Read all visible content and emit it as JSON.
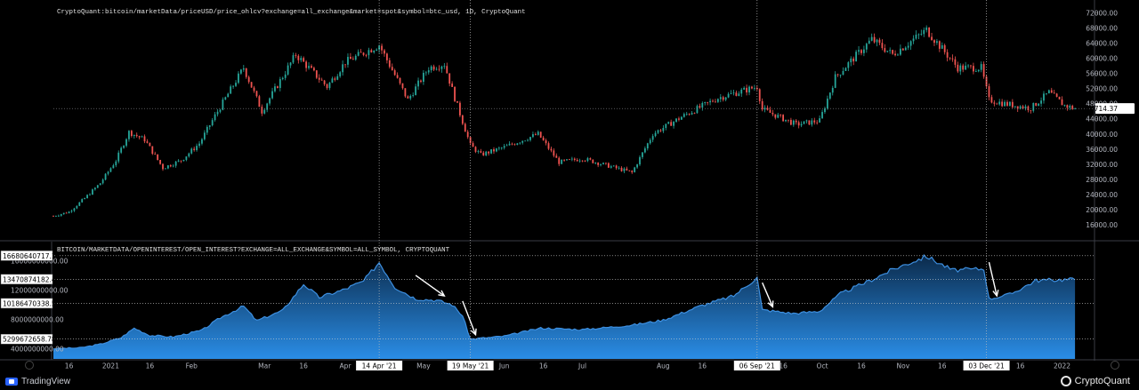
{
  "chart_data": [
    {
      "type": "candlestick",
      "title": "CryptoQuant:bitcoin/marketData/priceUSD/price_ohlcv?exchange=all_exchange&market=spot&symbol=btc_usd, 1D, CryptoQuant",
      "ylim": [
        12000,
        74000
      ],
      "ticks": [
        "16000.00",
        "20000.00",
        "24000.00",
        "28000.00",
        "32000.00",
        "36000.00",
        "40000.00",
        "44000.00",
        "48000.00",
        "52000.00",
        "56000.00",
        "60000.00",
        "64000.00",
        "68000.00",
        "72000.00"
      ],
      "last_price_label": "46714.37",
      "last_price": 46714.37,
      "up_color": "#26a69a",
      "down_color": "#ef5350",
      "price_path": [
        {
          "x": "2020-12-10",
          "y": 18300
        },
        {
          "x": "2020-12-16",
          "y": 19400
        },
        {
          "x": "2020-12-22",
          "y": 23000
        },
        {
          "x": "2020-12-28",
          "y": 27000
        },
        {
          "x": "2021-01-03",
          "y": 33000
        },
        {
          "x": "2021-01-08",
          "y": 40500
        },
        {
          "x": "2021-01-14",
          "y": 38500
        },
        {
          "x": "2021-01-21",
          "y": 31000
        },
        {
          "x": "2021-01-28",
          "y": 33000
        },
        {
          "x": "2021-02-04",
          "y": 37500
        },
        {
          "x": "2021-02-10",
          "y": 44800
        },
        {
          "x": "2021-02-21",
          "y": 57500
        },
        {
          "x": "2021-02-28",
          "y": 46000
        },
        {
          "x": "2021-03-13",
          "y": 61000
        },
        {
          "x": "2021-03-25",
          "y": 52500
        },
        {
          "x": "2021-04-01",
          "y": 59000
        },
        {
          "x": "2021-04-14",
          "y": 63500
        },
        {
          "x": "2021-04-25",
          "y": 49000
        },
        {
          "x": "2021-05-03",
          "y": 57500
        },
        {
          "x": "2021-05-09",
          "y": 58500
        },
        {
          "x": "2021-05-13",
          "y": 49500
        },
        {
          "x": "2021-05-19",
          "y": 37000
        },
        {
          "x": "2021-05-23",
          "y": 34500
        },
        {
          "x": "2021-06-01",
          "y": 36500
        },
        {
          "x": "2021-06-14",
          "y": 40000
        },
        {
          "x": "2021-06-22",
          "y": 32500
        },
        {
          "x": "2021-07-01",
          "y": 33500
        },
        {
          "x": "2021-07-20",
          "y": 29800
        },
        {
          "x": "2021-07-28",
          "y": 40000
        },
        {
          "x": "2021-08-08",
          "y": 44500
        },
        {
          "x": "2021-08-22",
          "y": 49500
        },
        {
          "x": "2021-09-06",
          "y": 52500
        },
        {
          "x": "2021-09-08",
          "y": 46500
        },
        {
          "x": "2021-09-21",
          "y": 42500
        },
        {
          "x": "2021-09-30",
          "y": 43500
        },
        {
          "x": "2021-10-06",
          "y": 55000
        },
        {
          "x": "2021-10-20",
          "y": 65000
        },
        {
          "x": "2021-10-28",
          "y": 61000
        },
        {
          "x": "2021-11-10",
          "y": 67500
        },
        {
          "x": "2021-11-22",
          "y": 57500
        },
        {
          "x": "2021-12-01",
          "y": 57500
        },
        {
          "x": "2021-12-04",
          "y": 49000
        },
        {
          "x": "2021-12-10",
          "y": 48000
        },
        {
          "x": "2021-12-20",
          "y": 46800
        },
        {
          "x": "2021-12-27",
          "y": 51000
        },
        {
          "x": "2022-01-02",
          "y": 47500
        },
        {
          "x": "2022-01-06",
          "y": 46714
        }
      ]
    },
    {
      "type": "area",
      "title": "BITCOIN/MARKETDATA/OPENINTEREST/OPEN_INTEREST?EXCHANGE=ALL_EXCHANGE&SYMBOL=ALL_SYMBOL, CRYPTOQUANT",
      "ylim": [
        2600000000,
        18600000000
      ],
      "ticks": [
        "4000000000.00",
        "8000000000.00",
        "12000000000.00",
        "16000000000.00"
      ],
      "labels": [
        "16680640717.18",
        "13470874182.40",
        "10186470338.57",
        "5299672658.78"
      ],
      "line_color": "#3d8fe0",
      "oi_path": [
        {
          "x": "2020-12-10",
          "y": 4000000000
        },
        {
          "x": "2020-12-20",
          "y": 4100000000
        },
        {
          "x": "2020-12-28",
          "y": 4600000000
        },
        {
          "x": "2021-01-05",
          "y": 5500000000
        },
        {
          "x": "2021-01-10",
          "y": 6800000000
        },
        {
          "x": "2021-01-16",
          "y": 5800000000
        },
        {
          "x": "2021-01-25",
          "y": 5600000000
        },
        {
          "x": "2021-02-05",
          "y": 6500000000
        },
        {
          "x": "2021-02-12",
          "y": 8200000000
        },
        {
          "x": "2021-02-21",
          "y": 9800000000
        },
        {
          "x": "2021-02-26",
          "y": 7800000000
        },
        {
          "x": "2021-03-08",
          "y": 9200000000
        },
        {
          "x": "2021-03-16",
          "y": 12800000000
        },
        {
          "x": "2021-03-22",
          "y": 11000000000
        },
        {
          "x": "2021-03-31",
          "y": 12000000000
        },
        {
          "x": "2021-04-08",
          "y": 13200000000
        },
        {
          "x": "2021-04-14",
          "y": 15800000000
        },
        {
          "x": "2021-04-20",
          "y": 12400000000
        },
        {
          "x": "2021-04-28",
          "y": 10800000000
        },
        {
          "x": "2021-05-06",
          "y": 10600000000
        },
        {
          "x": "2021-05-12",
          "y": 10000000000
        },
        {
          "x": "2021-05-16",
          "y": 8500000000
        },
        {
          "x": "2021-05-19",
          "y": 5300000000
        },
        {
          "x": "2021-06-01",
          "y": 5700000000
        },
        {
          "x": "2021-06-15",
          "y": 6800000000
        },
        {
          "x": "2021-07-01",
          "y": 6600000000
        },
        {
          "x": "2021-07-20",
          "y": 7200000000
        },
        {
          "x": "2021-08-01",
          "y": 7900000000
        },
        {
          "x": "2021-08-15",
          "y": 9800000000
        },
        {
          "x": "2021-08-28",
          "y": 11200000000
        },
        {
          "x": "2021-09-06",
          "y": 13700000000
        },
        {
          "x": "2021-09-08",
          "y": 9300000000
        },
        {
          "x": "2021-09-20",
          "y": 8800000000
        },
        {
          "x": "2021-09-30",
          "y": 9100000000
        },
        {
          "x": "2021-10-08",
          "y": 11500000000
        },
        {
          "x": "2021-10-20",
          "y": 13400000000
        },
        {
          "x": "2021-10-28",
          "y": 14800000000
        },
        {
          "x": "2021-11-10",
          "y": 16600000000
        },
        {
          "x": "2021-11-20",
          "y": 14700000000
        },
        {
          "x": "2021-12-02",
          "y": 14900000000
        },
        {
          "x": "2021-12-04",
          "y": 10800000000
        },
        {
          "x": "2021-12-12",
          "y": 11400000000
        },
        {
          "x": "2021-12-22",
          "y": 13300000000
        },
        {
          "x": "2022-01-06",
          "y": 13470874182
        }
      ]
    }
  ],
  "x_axis": {
    "ticks": [
      {
        "x": "2020-12-16",
        "label": "16"
      },
      {
        "x": "2021-01-01",
        "label": "2021"
      },
      {
        "x": "2021-01-16",
        "label": "16"
      },
      {
        "x": "2021-02-01",
        "label": "Feb"
      },
      {
        "x": "2021-03-01",
        "label": "Mar"
      },
      {
        "x": "2021-03-16",
        "label": "16"
      },
      {
        "x": "2021-04-01",
        "label": "Apr"
      },
      {
        "x": "2021-05-01",
        "label": "May"
      },
      {
        "x": "2021-06-01",
        "label": "Jun"
      },
      {
        "x": "2021-06-16",
        "label": "16"
      },
      {
        "x": "2021-07-01",
        "label": "Jul"
      },
      {
        "x": "2021-08-01",
        "label": "Aug"
      },
      {
        "x": "2021-08-16",
        "label": "16"
      },
      {
        "x": "2021-09-16",
        "label": "16"
      },
      {
        "x": "2021-10-01",
        "label": "Oct"
      },
      {
        "x": "2021-10-16",
        "label": "16"
      },
      {
        "x": "2021-11-01",
        "label": "Nov"
      },
      {
        "x": "2021-11-16",
        "label": "16"
      },
      {
        "x": "2021-12-16",
        "label": "16"
      },
      {
        "x": "2022-01-01",
        "label": "2022"
      }
    ],
    "highlights": [
      {
        "x": "2021-04-14",
        "label": "14 Apr '21"
      },
      {
        "x": "2021-05-19",
        "label": "19 May '21"
      },
      {
        "x": "2021-09-06",
        "label": "06 Sep '21"
      },
      {
        "x": "2021-12-03",
        "label": "03 Dec '21"
      }
    ]
  },
  "annotations": {
    "arrows": [
      {
        "from": {
          "x": "2021-04-28",
          "y": 14000000000
        },
        "to": {
          "x": "2021-05-09",
          "y": 11200000000
        }
      },
      {
        "from": {
          "x": "2021-05-16",
          "y": 10500000000
        },
        "to": {
          "x": "2021-05-21",
          "y": 5900000000
        }
      },
      {
        "from": {
          "x": "2021-09-08",
          "y": 13000000000
        },
        "to": {
          "x": "2021-09-12",
          "y": 9700000000
        }
      },
      {
        "from": {
          "x": "2021-12-04",
          "y": 15800000000
        },
        "to": {
          "x": "2021-12-07",
          "y": 11200000000
        }
      }
    ]
  },
  "footer": {
    "left": "TradingView",
    "right": "CryptoQuant"
  }
}
